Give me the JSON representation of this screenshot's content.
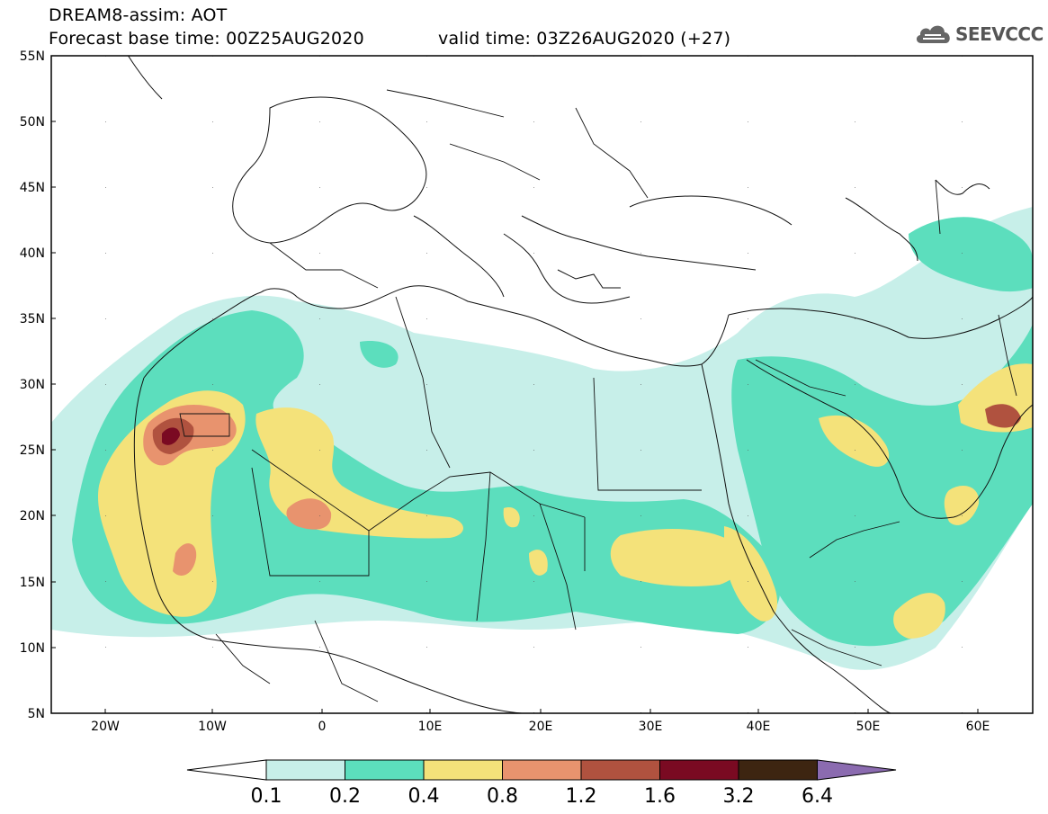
{
  "title": {
    "line1": "DREAM8-assim: AOT",
    "line2": "Forecast base time: 00Z25AUG2020",
    "line3": "valid time: 03Z26AUG2020 (+27)"
  },
  "logo": {
    "text": "SEEVCCC",
    "icon": "cloud-icon"
  },
  "map": {
    "lat_labels": [
      "55N",
      "50N",
      "45N",
      "40N",
      "35N",
      "30N",
      "25N",
      "20N",
      "15N",
      "10N",
      "5N"
    ],
    "lon_labels": [
      "20W",
      "10W",
      "0",
      "10E",
      "20E",
      "30E",
      "40E",
      "50E",
      "60E"
    ]
  },
  "colorbar": {
    "labels": [
      "0.1",
      "0.2",
      "0.4",
      "0.8",
      "1.2",
      "1.6",
      "3.2",
      "6.4"
    ],
    "colors": [
      "#ffffff",
      "#c7efe9",
      "#5cdebd",
      "#f4e27a",
      "#e8936e",
      "#b0523f",
      "#7a0a22",
      "#3d2511",
      "#8b6bb0"
    ]
  }
}
